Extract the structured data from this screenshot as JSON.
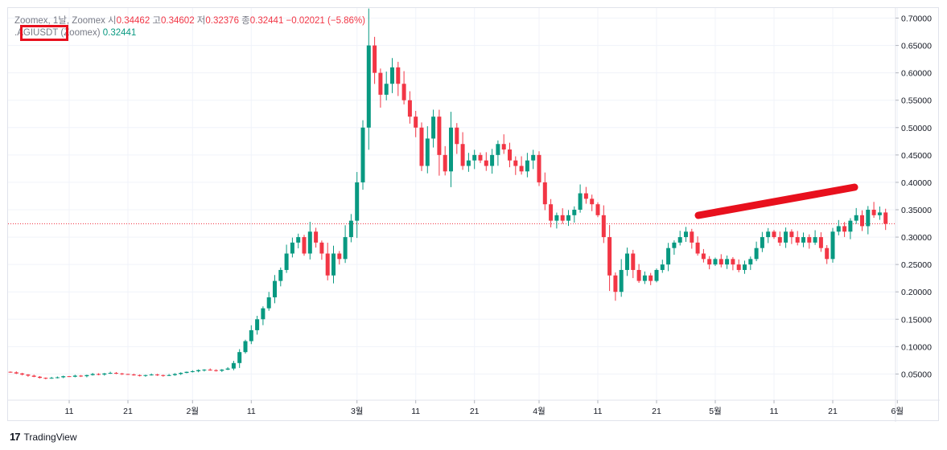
{
  "legend": {
    "exchange_line": "Zoomex, 1날, Zoomex",
    "open_label": "시",
    "open_value": "0.34462",
    "high_label": "고",
    "high_value": "0.34602",
    "low_label": "저",
    "low_value": "0.32376",
    "close_label": "종",
    "close_value": "0.32441",
    "change_value": "−0.02021 (−5.86%)",
    "symbol_prefix": ".",
    "symbol": "AGIUSDT",
    "exchange": "(Zoomex)",
    "last_value": "0.32441"
  },
  "brand": {
    "logo": "17",
    "name": "TradingView"
  },
  "colors": {
    "up": "#089981",
    "down": "#f23645",
    "annotation": "#e8101d",
    "text": "#131722",
    "grid": "#f0f3fa"
  },
  "chart_data": {
    "type": "candlestick",
    "y_axis": {
      "min": 0,
      "max": 0.7,
      "ticks": [
        "0.70000",
        "0.65000",
        "0.60000",
        "0.55000",
        "0.50000",
        "0.45000",
        "0.40000",
        "0.35000",
        "0.30000",
        "0.25000",
        "0.20000",
        "0.15000",
        "0.10000",
        "0.05000"
      ],
      "tick_values": [
        0.7,
        0.65,
        0.6,
        0.55,
        0.5,
        0.45,
        0.4,
        0.35,
        0.3,
        0.25,
        0.2,
        0.15,
        0.1,
        0.05
      ]
    },
    "x_axis": {
      "labels": [
        "11",
        "21",
        "2월",
        "11",
        "3월",
        "11",
        "21",
        "4월",
        "11",
        "21",
        "5월",
        "11",
        "21",
        "6월"
      ],
      "label_days": [
        10,
        20,
        31,
        41,
        59,
        69,
        79,
        90,
        100,
        110,
        120,
        130,
        140,
        151
      ]
    },
    "last_price": 0.32441,
    "grid": true,
    "closes": [
      0.053,
      0.051,
      0.049,
      0.047,
      0.045,
      0.043,
      0.042,
      0.043,
      0.044,
      0.046,
      0.045,
      0.047,
      0.046,
      0.048,
      0.05,
      0.049,
      0.051,
      0.052,
      0.051,
      0.05,
      0.049,
      0.048,
      0.047,
      0.048,
      0.049,
      0.048,
      0.047,
      0.048,
      0.05,
      0.052,
      0.054,
      0.055,
      0.057,
      0.058,
      0.057,
      0.056,
      0.058,
      0.06,
      0.07,
      0.09,
      0.11,
      0.13,
      0.15,
      0.17,
      0.19,
      0.22,
      0.24,
      0.27,
      0.29,
      0.3,
      0.27,
      0.31,
      0.29,
      0.27,
      0.23,
      0.27,
      0.26,
      0.3,
      0.33,
      0.4,
      0.5,
      0.65,
      0.6,
      0.56,
      0.58,
      0.61,
      0.58,
      0.55,
      0.52,
      0.5,
      0.43,
      0.48,
      0.52,
      0.45,
      0.42,
      0.5,
      0.47,
      0.43,
      0.44,
      0.45,
      0.44,
      0.43,
      0.45,
      0.47,
      0.46,
      0.44,
      0.43,
      0.42,
      0.44,
      0.45,
      0.4,
      0.36,
      0.33,
      0.34,
      0.33,
      0.34,
      0.35,
      0.38,
      0.37,
      0.36,
      0.34,
      0.3,
      0.23,
      0.2,
      0.24,
      0.27,
      0.24,
      0.22,
      0.23,
      0.22,
      0.24,
      0.25,
      0.28,
      0.29,
      0.3,
      0.31,
      0.29,
      0.27,
      0.26,
      0.25,
      0.26,
      0.25,
      0.26,
      0.25,
      0.24,
      0.25,
      0.26,
      0.28,
      0.3,
      0.31,
      0.3,
      0.29,
      0.31,
      0.3,
      0.29,
      0.3,
      0.29,
      0.3,
      0.28,
      0.26,
      0.31,
      0.32,
      0.31,
      0.33,
      0.34,
      0.32,
      0.35,
      0.34,
      0.345,
      0.32441
    ]
  }
}
